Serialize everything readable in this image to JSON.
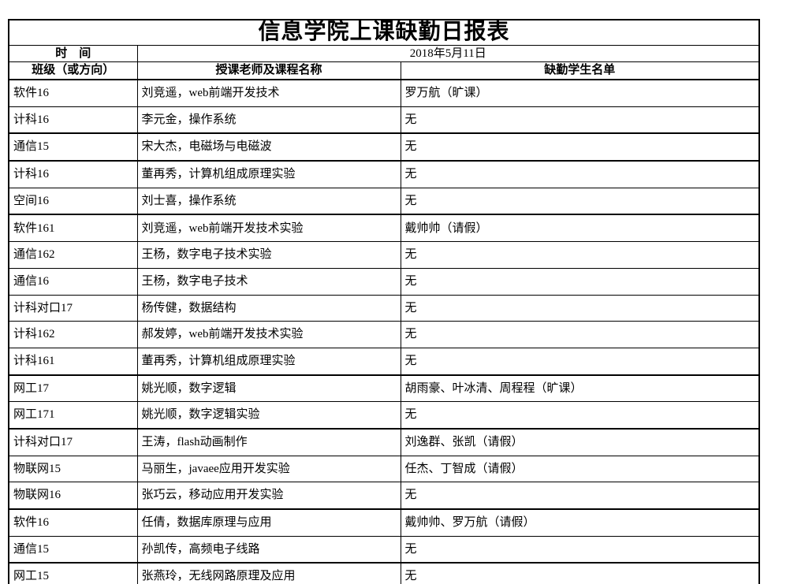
{
  "title": "信息学院上课缺勤日报表",
  "header": {
    "time_label": "时　间",
    "date_value": "2018年5月11日",
    "columns": [
      "班级（或方向）",
      "授课老师及课程名称",
      "缺勤学生名单"
    ]
  },
  "rows": [
    {
      "class": "软件16",
      "teacher_course": "刘竞遥，web前端开发技术",
      "absent": "罗万航（旷课）"
    },
    {
      "class": "计科16",
      "teacher_course": "李元金，操作系统",
      "absent": "无"
    },
    {
      "class": "通信15",
      "teacher_course": "宋大杰，电磁场与电磁波",
      "absent": "无"
    },
    {
      "class": "计科16",
      "teacher_course": "董再秀，计算机组成原理实验",
      "absent": "无"
    },
    {
      "class": "空间16",
      "teacher_course": "刘士喜，操作系统",
      "absent": "无"
    },
    {
      "class": "软件161",
      "teacher_course": "刘竞遥，web前端开发技术实验",
      "absent": "戴帅帅（请假）"
    },
    {
      "class": "通信162",
      "teacher_course": "王杨，数字电子技术实验",
      "absent": "无"
    },
    {
      "class": "通信16",
      "teacher_course": "王杨，数字电子技术",
      "absent": "无"
    },
    {
      "class": "计科对口17",
      "teacher_course": "杨传健，数据结构",
      "absent": "无"
    },
    {
      "class": "计科162",
      "teacher_course": "郝发婷，web前端开发技术实验",
      "absent": "无"
    },
    {
      "class": "计科161",
      "teacher_course": "董再秀，计算机组成原理实验",
      "absent": "无"
    },
    {
      "class": "网工17",
      "teacher_course": "姚光顺，数字逻辑",
      "absent": "胡雨豪、叶冰清、周程程（旷课）"
    },
    {
      "class": "网工171",
      "teacher_course": "姚光顺，数字逻辑实验",
      "absent": "无"
    },
    {
      "class": "计科对口17",
      "teacher_course": "王涛，flash动画制作",
      "absent": "刘逸群、张凯（请假）"
    },
    {
      "class": "物联网15",
      "teacher_course": "马丽生，javaee应用开发实验",
      "absent": "任杰、丁智成（请假）"
    },
    {
      "class": "物联网16",
      "teacher_course": "张巧云，移动应用开发实验",
      "absent": "无"
    },
    {
      "class": "软件16",
      "teacher_course": "任倩，数据库原理与应用",
      "absent": "戴帅帅、罗万航（请假）"
    },
    {
      "class": "通信15",
      "teacher_course": "孙凯传，高频电子线路",
      "absent": "无"
    },
    {
      "class": "网工15",
      "teacher_course": "张燕玲，无线网路原理及应用",
      "absent": "无"
    }
  ]
}
